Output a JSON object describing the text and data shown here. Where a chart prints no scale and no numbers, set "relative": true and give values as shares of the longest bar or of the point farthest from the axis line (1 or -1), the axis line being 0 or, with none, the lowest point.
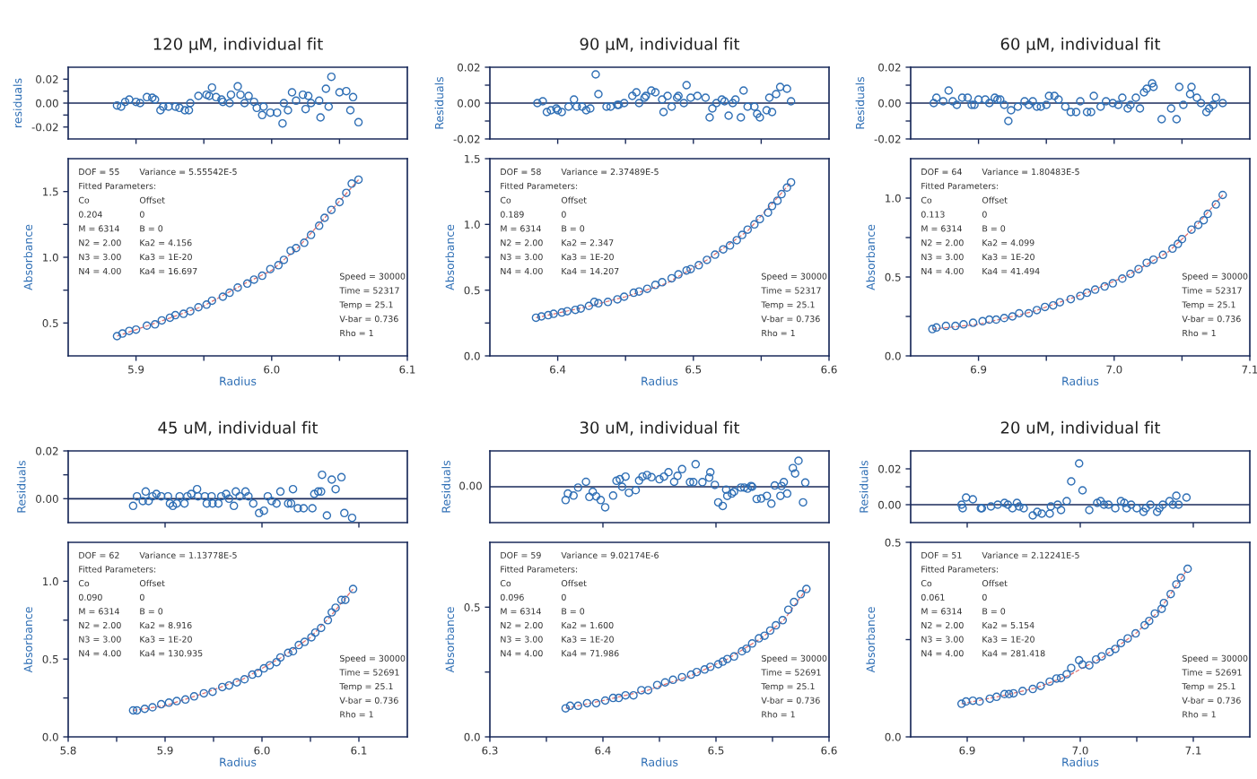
{
  "chart_data": [
    {
      "type": "scatter",
      "title": "120 μM, individual fit",
      "ylabel": "residuals",
      "xlim": [
        5.85,
        6.1
      ],
      "xticks": [
        {
          "value": 5.9,
          "label": null
        },
        {
          "value": 5.95,
          "label": null
        },
        {
          "value": 6.0,
          "label": null
        },
        {
          "value": 6.05,
          "label": null
        }
      ],
      "ylim": [
        -0.03,
        0.03
      ],
      "yticks": [
        {
          "value": -0.02,
          "label": "-0.02"
        },
        {
          "value": -0.01,
          "label": null
        },
        {
          "value": 0,
          "label": "0.00"
        },
        {
          "value": 0.01,
          "label": null
        },
        {
          "value": 0.02,
          "label": "0.02"
        }
      ],
      "tick_labels": "y",
      "ref_lines": [
        {
          "axis": "y",
          "value": 0,
          "color": "#1a2a5a"
        }
      ],
      "series": [
        {
          "type": "scatter",
          "marker": "circle",
          "color": "#2f6fb5",
          "x": [
            5.886,
            5.889,
            5.892,
            5.895,
            5.9,
            5.903,
            5.908,
            5.912,
            5.914,
            5.918,
            5.92,
            5.924,
            5.929,
            5.932,
            5.936,
            5.939,
            5.94,
            5.946,
            5.952,
            5.954,
            5.956,
            5.959,
            5.963,
            5.964,
            5.969,
            5.97,
            5.975,
            5.977,
            5.98,
            5.983,
            5.987,
            5.989,
            5.993,
            5.994,
            5.999,
            6.004,
            6.008,
            6.009,
            6.012,
            6.015,
            6.018,
            6.023,
            6.025,
            6.027,
            6.029,
            6.035,
            6.036,
            6.04,
            6.042,
            6.044,
            6.05,
            6.055,
            6.058,
            6.06,
            6.064
          ],
          "values": [
            -0.002,
            -0.003,
            0.001,
            0.003,
            0.001,
            0.0,
            0.005,
            0.0045,
            0.003,
            -0.006,
            -0.003,
            -0.003,
            -0.003,
            -0.004,
            -0.006,
            -0.006,
            0.0,
            0.006,
            0.007,
            0.006,
            0.013,
            0.005,
            0.003,
            0.001,
            0.0,
            0.007,
            0.014,
            0.007,
            0.0,
            0.006,
            0.001,
            -0.004,
            -0.01,
            -0.003,
            -0.008,
            -0.008,
            -0.017,
            0.0,
            -0.006,
            0.009,
            0.002,
            0.007,
            -0.005,
            0.006,
            0.0,
            0.002,
            -0.012,
            0.012,
            -0.003,
            0.022,
            0.009,
            0.01,
            -0.006,
            0.005,
            -0.016
          ]
        }
      ]
    },
    {
      "type": "scatter",
      "xlabel": "Radius",
      "ylabel": "Absorbance",
      "xlim": [
        5.85,
        6.1
      ],
      "xticks": [
        {
          "value": 5.9,
          "label": "5.9"
        },
        {
          "value": 5.95,
          "label": null
        },
        {
          "value": 6.0,
          "label": "6.0"
        },
        {
          "value": 6.05,
          "label": null
        },
        {
          "value": 6.1,
          "label": "6.1"
        }
      ],
      "ylim": [
        0.25,
        1.75
      ],
      "yticks": [
        {
          "value": 0.5,
          "label": "0.5"
        },
        {
          "value": 0.75,
          "label": null
        },
        {
          "value": 1.0,
          "label": "1.0"
        },
        {
          "value": 1.25,
          "label": null
        },
        {
          "value": 1.5,
          "label": "1.5"
        }
      ],
      "annotations": [
        "DOF = 55",
        "Variance = 5.55542E-5",
        "Fitted Parameters:",
        "Co",
        "Offset",
        "0.204",
        "0",
        "M = 6314",
        "B = 0",
        "N2 = 2.00",
        "Ka2 = 4.156",
        "N3 = 3.00",
        "Ka3 = 1E-20",
        "N4 = 4.00",
        "Ka4 = 16.697",
        "Speed = 30000",
        "Time = 52317",
        "Temp = 25.1",
        "V-bar = 0.736",
        "Rho = 1"
      ],
      "series": [
        {
          "type": "scatter",
          "marker": "circle",
          "color": "#2f6fb5",
          "x": [
            5.886,
            5.89,
            5.895,
            5.9,
            5.908,
            5.914,
            5.919,
            5.925,
            5.929,
            5.935,
            5.94,
            5.946,
            5.952,
            5.956,
            5.964,
            5.969,
            5.975,
            5.982,
            5.987,
            5.993,
            5.999,
            6.005,
            6.009,
            6.014,
            6.018,
            6.024,
            6.029,
            6.035,
            6.039,
            6.044,
            6.05,
            6.055,
            6.059,
            6.064
          ],
          "values": [
            0.4,
            0.42,
            0.44,
            0.45,
            0.48,
            0.49,
            0.52,
            0.54,
            0.56,
            0.57,
            0.59,
            0.62,
            0.64,
            0.67,
            0.7,
            0.73,
            0.77,
            0.8,
            0.83,
            0.86,
            0.91,
            0.94,
            0.98,
            1.05,
            1.07,
            1.11,
            1.17,
            1.24,
            1.3,
            1.36,
            1.42,
            1.49,
            1.56,
            1.59
          ]
        },
        {
          "type": "line",
          "line_style": "dashed",
          "color": "#e07070",
          "x": [
            5.886,
            5.92,
            5.95,
            5.98,
            6.0,
            6.02,
            6.04,
            6.064
          ],
          "values": [
            0.4,
            0.52,
            0.63,
            0.8,
            0.9,
            1.08,
            1.31,
            1.59
          ]
        }
      ]
    },
    {
      "type": "scatter",
      "title": "90 μM, individual fit",
      "ylabel": "Residuals",
      "xlim": [
        6.35,
        6.6
      ],
      "xticks": [
        {
          "value": 6.4,
          "label": null
        },
        {
          "value": 6.45,
          "label": null
        },
        {
          "value": 6.5,
          "label": null
        },
        {
          "value": 6.55,
          "label": null
        }
      ],
      "ylim": [
        -0.02,
        0.02
      ],
      "yticks": [
        {
          "value": -0.02,
          "label": "-0.02"
        },
        {
          "value": -0.01,
          "label": null
        },
        {
          "value": 0,
          "label": "0.00"
        },
        {
          "value": 0.01,
          "label": null
        },
        {
          "value": 0.02,
          "label": "0.02"
        }
      ],
      "tick_labels": "y",
      "ref_lines": [
        {
          "axis": "y",
          "value": 0,
          "color": "#1a2a5a"
        }
      ],
      "series": [
        {
          "type": "scatter",
          "marker": "circle",
          "color": "#2f6fb5",
          "x": [
            6.385,
            6.389,
            6.392,
            6.395,
            6.399,
            6.4,
            6.403,
            6.408,
            6.412,
            6.414,
            6.418,
            6.421,
            6.424,
            6.428,
            6.43,
            6.436,
            6.439,
            6.444,
            6.445,
            6.449,
            6.455,
            6.458,
            6.46,
            6.464,
            6.465,
            6.469,
            6.472,
            6.477,
            6.478,
            6.481,
            6.484,
            6.488,
            6.489,
            6.493,
            6.495,
            6.498,
            6.503,
            6.509,
            6.512,
            6.514,
            6.517,
            6.521,
            6.523,
            6.526,
            6.529,
            6.531,
            6.535,
            6.537,
            6.54,
            6.545,
            6.547,
            6.549,
            6.554,
            6.556,
            6.558,
            6.561,
            6.564,
            6.569,
            6.572
          ],
          "values": [
            0.0,
            0.001,
            -0.005,
            -0.004,
            -0.003,
            -0.004,
            -0.005,
            -0.002,
            0.002,
            -0.002,
            -0.002,
            -0.004,
            -0.003,
            0.016,
            0.005,
            -0.002,
            -0.002,
            -0.001,
            -0.001,
            0.0,
            0.004,
            0.006,
            0.0,
            0.003,
            0.004,
            0.007,
            0.006,
            0.002,
            -0.005,
            0.004,
            -0.002,
            0.003,
            0.004,
            0.0,
            0.01,
            0.003,
            0.004,
            0.003,
            -0.008,
            -0.003,
            0.0,
            0.002,
            0.001,
            -0.007,
            0.0,
            0.002,
            -0.008,
            0.007,
            -0.002,
            -0.002,
            -0.006,
            -0.008,
            -0.004,
            0.003,
            -0.005,
            0.005,
            0.009,
            0.008,
            0.001
          ]
        }
      ]
    },
    {
      "type": "scatter",
      "xlabel": "Radius",
      "ylabel": "Absorbance",
      "xlim": [
        6.35,
        6.6
      ],
      "xticks": [
        {
          "value": 6.4,
          "label": "6.4"
        },
        {
          "value": 6.45,
          "label": null
        },
        {
          "value": 6.5,
          "label": "6.5"
        },
        {
          "value": 6.55,
          "label": null
        },
        {
          "value": 6.6,
          "label": "6.6"
        }
      ],
      "ylim": [
        0.0,
        1.5
      ],
      "yticks": [
        {
          "value": 0.0,
          "label": "0.0"
        },
        {
          "value": 0.25,
          "label": null
        },
        {
          "value": 0.5,
          "label": "0.5"
        },
        {
          "value": 0.75,
          "label": null
        },
        {
          "value": 1.0,
          "label": "1.0"
        },
        {
          "value": 1.25,
          "label": null
        },
        {
          "value": 1.5,
          "label": "1.5"
        }
      ],
      "annotations": [
        "DOF = 58",
        "Variance = 2.37489E-5",
        "Fitted Parameters:",
        "Co",
        "Offset",
        "0.189",
        "0",
        "M = 6314",
        "B = 0",
        "N2 = 2.00",
        "Ka2 = 2.347",
        "N3 = 3.00",
        "Ka3 = 1E-20",
        "N4 = 4.00",
        "Ka4 = 14.207",
        "Speed = 30000",
        "Time = 52317",
        "Temp = 25.1",
        "V-bar = 0.736",
        "Rho = 1"
      ],
      "series": [
        {
          "type": "scatter",
          "marker": "circle",
          "color": "#2f6fb5",
          "x": [
            6.384,
            6.388,
            6.393,
            6.397,
            6.403,
            6.407,
            6.413,
            6.417,
            6.423,
            6.427,
            6.43,
            6.437,
            6.444,
            6.449,
            6.456,
            6.46,
            6.466,
            6.472,
            6.477,
            6.484,
            6.489,
            6.495,
            6.498,
            6.504,
            6.51,
            6.516,
            6.522,
            6.527,
            6.532,
            6.536,
            6.54,
            6.545,
            6.549,
            6.555,
            6.558,
            6.562,
            6.565,
            6.569,
            6.572
          ],
          "values": [
            0.29,
            0.3,
            0.31,
            0.32,
            0.33,
            0.34,
            0.35,
            0.36,
            0.38,
            0.41,
            0.4,
            0.41,
            0.43,
            0.45,
            0.48,
            0.49,
            0.51,
            0.54,
            0.56,
            0.59,
            0.62,
            0.65,
            0.66,
            0.69,
            0.73,
            0.77,
            0.81,
            0.84,
            0.88,
            0.92,
            0.96,
            1.0,
            1.04,
            1.09,
            1.14,
            1.18,
            1.23,
            1.28,
            1.32
          ]
        },
        {
          "type": "line",
          "line_style": "dashed",
          "color": "#e07070",
          "x": [
            6.384,
            6.42,
            6.45,
            6.48,
            6.51,
            6.54,
            6.572
          ],
          "values": [
            0.29,
            0.37,
            0.45,
            0.55,
            0.73,
            0.95,
            1.32
          ]
        }
      ]
    },
    {
      "type": "scatter",
      "title": "60 μM, individual fit",
      "ylabel": "Residuals",
      "xlim": [
        6.85,
        7.1
      ],
      "xticks": [
        {
          "value": 6.9,
          "label": null
        },
        {
          "value": 6.95,
          "label": null
        },
        {
          "value": 7.0,
          "label": null
        },
        {
          "value": 7.05,
          "label": null
        }
      ],
      "ylim": [
        -0.02,
        0.02
      ],
      "yticks": [
        {
          "value": -0.02,
          "label": "-0.02"
        },
        {
          "value": -0.01,
          "label": null
        },
        {
          "value": 0,
          "label": "0.00"
        },
        {
          "value": 0.01,
          "label": null
        },
        {
          "value": 0.02,
          "label": "0.02"
        }
      ],
      "tick_labels": "y",
      "ref_lines": [
        {
          "axis": "y",
          "value": 0,
          "color": "#1a2a5a"
        }
      ],
      "series": [
        {
          "type": "scatter",
          "marker": "circle",
          "color": "#2f6fb5",
          "x": [
            6.867,
            6.869,
            6.874,
            6.878,
            6.881,
            6.884,
            6.888,
            6.892,
            6.895,
            6.897,
            6.9,
            6.905,
            6.908,
            6.912,
            6.914,
            6.916,
            6.919,
            6.922,
            6.924,
            6.929,
            6.934,
            6.937,
            6.94,
            6.943,
            6.946,
            6.95,
            6.952,
            6.956,
            6.959,
            6.964,
            6.968,
            6.972,
            6.975,
            6.98,
            6.983,
            6.985,
            6.99,
            6.994,
            6.999,
            7.003,
            7.006,
            7.01,
            7.012,
            7.016,
            7.019,
            7.022,
            7.024,
            7.028,
            7.029,
            7.035,
            7.042,
            7.046,
            7.048,
            7.051,
            7.056,
            7.057,
            7.061,
            7.064,
            7.068,
            7.07,
            7.073,
            7.075,
            7.08
          ],
          "values": [
            0.0,
            0.003,
            0.001,
            0.007,
            0.001,
            -0.001,
            0.003,
            0.003,
            -0.001,
            -0.001,
            0.002,
            0.002,
            0.0,
            0.003,
            0.002,
            0.002,
            -0.001,
            -0.01,
            -0.004,
            -0.002,
            0.001,
            -0.001,
            0.001,
            -0.002,
            -0.002,
            -0.001,
            0.004,
            0.004,
            0.002,
            -0.002,
            -0.005,
            -0.005,
            0.001,
            -0.005,
            -0.005,
            0.004,
            -0.002,
            0.001,
            0.0,
            -0.001,
            0.003,
            -0.003,
            -0.001,
            0.003,
            -0.003,
            0.006,
            0.008,
            0.011,
            0.009,
            -0.009,
            -0.003,
            -0.009,
            0.009,
            -0.001,
            0.005,
            0.009,
            0.003,
            0.0,
            -0.005,
            -0.003,
            -0.001,
            0.003,
            0.0
          ]
        }
      ]
    },
    {
      "type": "scatter",
      "xlabel": "Radius",
      "ylabel": "Absorbance",
      "xlim": [
        6.85,
        7.1
      ],
      "xticks": [
        {
          "value": 6.9,
          "label": "6.9"
        },
        {
          "value": 6.95,
          "label": null
        },
        {
          "value": 7.0,
          "label": "7.0"
        },
        {
          "value": 7.05,
          "label": null
        },
        {
          "value": 7.1,
          "label": "7.1"
        }
      ],
      "ylim": [
        0.0,
        1.25
      ],
      "yticks": [
        {
          "value": 0.0,
          "label": "0.0"
        },
        {
          "value": 0.25,
          "label": null
        },
        {
          "value": 0.5,
          "label": "0.5"
        },
        {
          "value": 0.75,
          "label": null
        },
        {
          "value": 1.0,
          "label": "1.0"
        }
      ],
      "annotations": [
        "DOF = 64",
        "Variance = 1.80483E-5",
        "Fitted Parameters:",
        "Co",
        "Offset",
        "0.113",
        "0",
        "M = 6314",
        "B = 0",
        "N2 = 2.00",
        "Ka2 = 4.099",
        "N3 = 3.00",
        "Ka3 = 1E-20",
        "N4 = 4.00",
        "Ka4 = 41.494",
        "Speed = 30000",
        "Time = 52317",
        "Temp = 25.1",
        "V-bar = 0.736",
        "Rho = 1"
      ],
      "series": [
        {
          "type": "scatter",
          "marker": "circle",
          "color": "#2f6fb5",
          "x": [
            6.866,
            6.869,
            6.876,
            6.883,
            6.889,
            6.896,
            6.903,
            6.908,
            6.913,
            6.919,
            6.925,
            6.93,
            6.937,
            6.943,
            6.949,
            6.955,
            6.96,
            6.968,
            6.975,
            6.98,
            6.986,
            6.993,
            6.999,
            7.006,
            7.012,
            7.018,
            7.024,
            7.029,
            7.036,
            7.043,
            7.047,
            7.05,
            7.057,
            7.062,
            7.066,
            7.069,
            7.075,
            7.08
          ],
          "values": [
            0.17,
            0.18,
            0.19,
            0.19,
            0.2,
            0.21,
            0.22,
            0.23,
            0.23,
            0.24,
            0.25,
            0.27,
            0.27,
            0.29,
            0.31,
            0.32,
            0.34,
            0.36,
            0.38,
            0.4,
            0.42,
            0.44,
            0.46,
            0.49,
            0.52,
            0.55,
            0.59,
            0.61,
            0.64,
            0.68,
            0.71,
            0.74,
            0.8,
            0.83,
            0.86,
            0.9,
            0.96,
            1.02
          ]
        },
        {
          "type": "line",
          "line_style": "dashed",
          "color": "#e07070",
          "x": [
            6.866,
            6.9,
            6.94,
            6.98,
            7.01,
            7.04,
            7.06,
            7.08
          ],
          "values": [
            0.17,
            0.2,
            0.28,
            0.4,
            0.51,
            0.66,
            0.82,
            1.02
          ]
        }
      ]
    },
    {
      "type": "scatter",
      "title": "45 uM, individual fit",
      "ylabel": "Residuals",
      "xlim": [
        5.8,
        6.15
      ],
      "xticks": [
        {
          "value": 5.9,
          "label": null
        },
        {
          "value": 6.0,
          "label": null
        },
        {
          "value": 6.1,
          "label": null
        }
      ],
      "ylim": [
        -0.01,
        0.02
      ],
      "yticks": [
        {
          "value": 0,
          "label": "0.00"
        },
        {
          "value": 0.01,
          "label": null
        },
        {
          "value": 0.02,
          "label": "0.02"
        }
      ],
      "tick_labels": "y",
      "ref_lines": [
        {
          "axis": "y",
          "value": 0,
          "color": "#1a2a5a"
        }
      ],
      "series": [
        {
          "type": "scatter",
          "marker": "circle",
          "color": "#2f6fb5",
          "x": [
            5.867,
            5.871,
            5.877,
            5.88,
            5.883,
            5.887,
            5.891,
            5.896,
            5.903,
            5.905,
            5.908,
            5.912,
            5.915,
            5.92,
            5.923,
            5.927,
            5.933,
            5.934,
            5.941,
            5.943,
            5.948,
            5.949,
            5.955,
            5.958,
            5.963,
            5.966,
            5.971,
            5.973,
            5.977,
            5.983,
            5.986,
            5.991,
            5.997,
            6.002,
            6.006,
            6.01,
            6.015,
            6.019,
            6.027,
            6.03,
            6.032,
            6.037,
            6.043,
            6.052,
            6.054,
            6.058,
            6.061,
            6.062,
            6.067,
            6.072,
            6.076,
            6.082,
            6.085,
            6.093
          ],
          "values": [
            -0.003,
            0.001,
            -0.001,
            0.003,
            -0.001,
            0.001,
            0.002,
            0.001,
            0.001,
            -0.002,
            -0.003,
            -0.002,
            0.001,
            -0.002,
            0.001,
            0.002,
            0.004,
            0.001,
            0.001,
            -0.002,
            0.001,
            -0.002,
            -0.002,
            0.001,
            0.002,
            0.0,
            -0.003,
            0.003,
            0.001,
            0.003,
            0.001,
            -0.002,
            -0.006,
            -0.005,
            0.001,
            -0.001,
            -0.002,
            0.003,
            -0.002,
            -0.002,
            0.004,
            -0.004,
            -0.004,
            -0.004,
            0.002,
            0.003,
            0.003,
            0.01,
            -0.007,
            0.008,
            0.004,
            0.009,
            -0.006,
            -0.008
          ]
        }
      ]
    },
    {
      "type": "scatter",
      "xlabel": "Radius",
      "ylabel": "Absorbance",
      "xlim": [
        5.8,
        6.15
      ],
      "xticks": [
        {
          "value": 5.8,
          "label": "5.8"
        },
        {
          "value": 5.85,
          "label": null
        },
        {
          "value": 5.9,
          "label": "5.9"
        },
        {
          "value": 5.95,
          "label": null
        },
        {
          "value": 6.0,
          "label": "6.0"
        },
        {
          "value": 6.05,
          "label": null
        },
        {
          "value": 6.1,
          "label": "6.1"
        }
      ],
      "ylim": [
        0.0,
        1.25
      ],
      "yticks": [
        {
          "value": 0.0,
          "label": "0.0"
        },
        {
          "value": 0.25,
          "label": null
        },
        {
          "value": 0.5,
          "label": "0.5"
        },
        {
          "value": 0.75,
          "label": null
        },
        {
          "value": 1.0,
          "label": "1.0"
        }
      ],
      "annotations": [
        "DOF = 62",
        "Variance = 1.13778E-5",
        "Fitted Parameters:",
        "Co",
        "Offset",
        "0.090",
        "0",
        "M = 6314",
        "B = 0",
        "N2 = 2.00",
        "Ka2 = 8.916",
        "N3 = 3.00",
        "Ka3 = 1E-20",
        "N4 = 4.00",
        "Ka4 = 130.935",
        "Speed = 30000",
        "Time = 52691",
        "Temp = 25.1",
        "V-bar = 0.736",
        "Rho = 1"
      ],
      "series": [
        {
          "type": "scatter",
          "marker": "circle",
          "color": "#2f6fb5",
          "x": [
            5.867,
            5.871,
            5.879,
            5.887,
            5.896,
            5.904,
            5.912,
            5.921,
            5.93,
            5.94,
            5.949,
            5.959,
            5.966,
            5.974,
            5.982,
            5.99,
            5.996,
            6.002,
            6.008,
            6.015,
            6.019,
            6.027,
            6.032,
            6.038,
            6.044,
            6.051,
            6.055,
            6.061,
            6.068,
            6.072,
            6.076,
            6.082,
            6.086,
            6.094
          ],
          "values": [
            0.17,
            0.17,
            0.18,
            0.19,
            0.21,
            0.22,
            0.23,
            0.24,
            0.26,
            0.28,
            0.29,
            0.32,
            0.33,
            0.35,
            0.37,
            0.4,
            0.41,
            0.44,
            0.46,
            0.48,
            0.51,
            0.54,
            0.55,
            0.59,
            0.61,
            0.64,
            0.67,
            0.7,
            0.75,
            0.8,
            0.83,
            0.88,
            0.88,
            0.95
          ]
        },
        {
          "type": "line",
          "line_style": "dashed",
          "color": "#e07070",
          "x": [
            5.867,
            5.9,
            5.94,
            5.98,
            6.02,
            6.05,
            6.07,
            6.094
          ],
          "values": [
            0.17,
            0.2,
            0.28,
            0.37,
            0.51,
            0.64,
            0.77,
            0.95
          ]
        }
      ]
    },
    {
      "type": "scatter",
      "title": "30 uM, individual fit",
      "ylabel": "Residuals",
      "xlim": [
        6.3,
        6.6
      ],
      "xticks": [
        {
          "value": 6.4,
          "label": null
        },
        {
          "value": 6.5,
          "label": null
        }
      ],
      "relative": true,
      "tick_labels": "y",
      "ref_lines": [
        {
          "axis": "y",
          "value": 0,
          "label": "0.00",
          "color": "#1a2a5a"
        }
      ],
      "series": [
        {
          "type": "scatter",
          "marker": "circle",
          "color": "#2f6fb5",
          "x": [
            6.367,
            6.369,
            6.374,
            6.378,
            6.385,
            6.388,
            6.391,
            6.394,
            6.398,
            6.402,
            6.409,
            6.412,
            6.415,
            6.417,
            6.42,
            6.423,
            6.429,
            6.432,
            6.435,
            6.439,
            6.443,
            6.45,
            6.454,
            6.458,
            6.463,
            6.466,
            6.47,
            6.477,
            6.48,
            6.482,
            6.488,
            6.494,
            6.495,
            6.499,
            6.502,
            6.506,
            6.509,
            6.51,
            6.514,
            6.516,
            6.522,
            6.525,
            6.528,
            6.531,
            6.532,
            6.536,
            6.54,
            6.545,
            6.549,
            6.552,
            6.557,
            6.558,
            6.56,
            6.563,
            6.568,
            6.57,
            6.573,
            6.577,
            6.579
          ],
          "values": [
            -0.51,
            -0.26,
            -0.34,
            -0.03,
            0.19,
            -0.39,
            -0.19,
            -0.37,
            -0.51,
            -0.79,
            -0.34,
            0.23,
            0.29,
            0.0,
            0.39,
            -0.23,
            -0.13,
            0.24,
            0.39,
            0.45,
            0.37,
            0.29,
            0.39,
            0.56,
            0.19,
            0.42,
            0.68,
            0.18,
            0.18,
            0.87,
            0.18,
            0.35,
            0.56,
            0.07,
            -0.6,
            -0.74,
            -0.11,
            -0.35,
            -0.26,
            -0.19,
            -0.03,
            -0.03,
            -0.07,
            0.03,
            0.0,
            -0.47,
            -0.45,
            -0.35,
            -0.65,
            0.05,
            -0.35,
            0.03,
            0.18,
            -0.26,
            0.72,
            0.51,
            1.0,
            -0.6,
            0.16
          ]
        }
      ]
    },
    {
      "type": "scatter",
      "xlabel": "Radius",
      "ylabel": "Absorbance",
      "xlim": [
        6.3,
        6.6
      ],
      "xticks": [
        {
          "value": 6.3,
          "label": "6.3"
        },
        {
          "value": 6.35,
          "label": null
        },
        {
          "value": 6.4,
          "label": "6.4"
        },
        {
          "value": 6.45,
          "label": null
        },
        {
          "value": 6.5,
          "label": "6.5"
        },
        {
          "value": 6.55,
          "label": null
        },
        {
          "value": 6.6,
          "label": "6.6"
        }
      ],
      "ylim": [
        0.0,
        0.75
      ],
      "yticks": [
        {
          "value": 0.0,
          "label": "0.0"
        },
        {
          "value": 0.25,
          "label": null
        },
        {
          "value": 0.5,
          "label": "0.5"
        }
      ],
      "annotations": [
        "DOF = 59",
        "Variance = 9.02174E-6",
        "Fitted Parameters:",
        "Co",
        "Offset",
        "0.096",
        "0",
        "M = 6314",
        "B = 0",
        "N2 = 2.00",
        "Ka2 = 1.600",
        "N3 = 3.00",
        "Ka3 = 1E-20",
        "N4 = 4.00",
        "Ka4 = 71.986",
        "Speed = 30000",
        "Time = 52691",
        "Temp = 25.1",
        "V-bar = 0.736",
        "Rho = 1"
      ],
      "series": [
        {
          "type": "scatter",
          "marker": "circle",
          "color": "#2f6fb5",
          "x": [
            6.367,
            6.371,
            6.378,
            6.386,
            6.394,
            6.402,
            6.409,
            6.414,
            6.42,
            6.427,
            6.434,
            6.44,
            6.448,
            6.455,
            6.462,
            6.47,
            6.478,
            6.483,
            6.49,
            6.495,
            6.502,
            6.506,
            6.51,
            6.516,
            6.523,
            6.527,
            6.532,
            6.538,
            6.543,
            6.548,
            6.553,
            6.559,
            6.564,
            6.569,
            6.575,
            6.58
          ],
          "values": [
            0.11,
            0.12,
            0.12,
            0.13,
            0.13,
            0.14,
            0.15,
            0.15,
            0.16,
            0.16,
            0.18,
            0.18,
            0.2,
            0.21,
            0.22,
            0.23,
            0.24,
            0.25,
            0.26,
            0.27,
            0.28,
            0.29,
            0.3,
            0.31,
            0.33,
            0.34,
            0.36,
            0.38,
            0.39,
            0.41,
            0.43,
            0.45,
            0.49,
            0.52,
            0.55,
            0.57
          ]
        },
        {
          "type": "line",
          "line_style": "dashed",
          "color": "#e07070",
          "x": [
            6.367,
            6.4,
            6.44,
            6.48,
            6.51,
            6.54,
            6.56,
            6.58
          ],
          "values": [
            0.11,
            0.14,
            0.18,
            0.24,
            0.3,
            0.38,
            0.45,
            0.57
          ]
        }
      ]
    },
    {
      "type": "scatter",
      "title": "20 uM, individual fit",
      "ylabel": "Residuals",
      "xlim": [
        6.85,
        7.15
      ],
      "xticks": [
        {
          "value": 6.9,
          "label": null
        },
        {
          "value": 7.0,
          "label": null
        },
        {
          "value": 7.1,
          "label": null
        }
      ],
      "ylim": [
        -0.01,
        0.03
      ],
      "yticks": [
        {
          "value": 0,
          "label": "0.00"
        },
        {
          "value": 0.01,
          "label": null
        },
        {
          "value": 0.02,
          "label": "0.02"
        }
      ],
      "tick_labels": "y",
      "ref_lines": [
        {
          "axis": "y",
          "value": 0,
          "color": "#1a2a5a"
        }
      ],
      "series": [
        {
          "type": "scatter",
          "marker": "circle",
          "color": "#2f6fb5",
          "x": [
            6.895,
            6.896,
            6.899,
            6.905,
            6.912,
            6.913,
            6.921,
            6.927,
            6.933,
            6.936,
            6.94,
            6.944,
            6.946,
            6.95,
            6.958,
            6.962,
            6.966,
            6.973,
            6.974,
            6.98,
            6.983,
            6.988,
            6.992,
            6.999,
            7.002,
            7.008,
            7.015,
            7.018,
            7.021,
            7.025,
            7.031,
            7.036,
            7.039,
            7.041,
            7.045,
            7.05,
            7.056,
            7.058,
            7.062,
            7.068,
            7.07,
            7.073,
            7.079,
            7.082,
            7.085,
            7.087,
            7.094
          ],
          "values": [
            0.0,
            -0.002,
            0.004,
            0.003,
            -0.002,
            -0.002,
            -0.001,
            0.0,
            0.001,
            0.0,
            -0.002,
            0.001,
            -0.001,
            -0.002,
            -0.006,
            -0.004,
            -0.005,
            -0.005,
            -0.001,
            0.0,
            -0.003,
            0.002,
            0.013,
            0.023,
            0.008,
            -0.003,
            0.001,
            0.002,
            0.0,
            0.0,
            -0.002,
            0.002,
            0.001,
            -0.002,
            0.0,
            -0.002,
            -0.004,
            -0.002,
            0.0,
            -0.004,
            -0.002,
            0.0,
            0.002,
            0.0,
            0.005,
            0.0,
            0.004
          ]
        }
      ]
    },
    {
      "type": "scatter",
      "xlabel": "Radius",
      "ylabel": "Absorbance",
      "xlim": [
        6.85,
        7.15
      ],
      "xticks": [
        {
          "value": 6.9,
          "label": "6.9"
        },
        {
          "value": 6.95,
          "label": null
        },
        {
          "value": 7.0,
          "label": "7.0"
        },
        {
          "value": 7.05,
          "label": null
        },
        {
          "value": 7.1,
          "label": "7.1"
        }
      ],
      "ylim": [
        0.0,
        0.5
      ],
      "yticks": [
        {
          "value": 0.0,
          "label": "0.0"
        },
        {
          "value": 0.25,
          "label": null
        },
        {
          "value": 0.5,
          "label": "0.5"
        }
      ],
      "annotations": [
        "DOF = 51",
        "Variance = 2.12241E-5",
        "Fitted Parameters:",
        "Co",
        "Offset",
        "0.061",
        "0",
        "M = 6314",
        "B = 0",
        "N2 = 2.00",
        "Ka2 = 5.154",
        "N3 = 3.00",
        "Ka3 = 1E-20",
        "N4 = 4.00",
        "Ka4 = 281.418",
        "Speed = 30000",
        "Time = 52691",
        "Temp = 25.1",
        "V-bar = 0.736",
        "Rho = 1"
      ],
      "series": [
        {
          "type": "scatter",
          "marker": "circle",
          "color": "#2f6fb5",
          "x": [
            6.895,
            6.899,
            6.905,
            6.911,
            6.92,
            6.926,
            6.933,
            6.937,
            6.941,
            6.949,
            6.958,
            6.965,
            6.973,
            6.979,
            6.983,
            6.988,
            6.992,
            6.999,
            7.002,
            7.008,
            7.014,
            7.019,
            7.026,
            7.031,
            7.036,
            7.042,
            7.049,
            7.057,
            7.061,
            7.066,
            7.072,
            7.074,
            7.08,
            7.085,
            7.089,
            7.095
          ],
          "values": [
            0.085,
            0.091,
            0.093,
            0.091,
            0.098,
            0.103,
            0.11,
            0.11,
            0.112,
            0.118,
            0.123,
            0.131,
            0.142,
            0.15,
            0.151,
            0.161,
            0.177,
            0.197,
            0.186,
            0.184,
            0.199,
            0.207,
            0.218,
            0.226,
            0.241,
            0.253,
            0.266,
            0.287,
            0.298,
            0.317,
            0.329,
            0.344,
            0.367,
            0.392,
            0.409,
            0.432
          ]
        },
        {
          "type": "line",
          "line_style": "dashed",
          "color": "#e07070",
          "x": [
            6.895,
            6.93,
            6.96,
            6.99,
            7.02,
            7.05,
            7.07,
            7.095
          ],
          "values": [
            0.085,
            0.105,
            0.125,
            0.158,
            0.205,
            0.268,
            0.325,
            0.432
          ]
        }
      ]
    }
  ]
}
